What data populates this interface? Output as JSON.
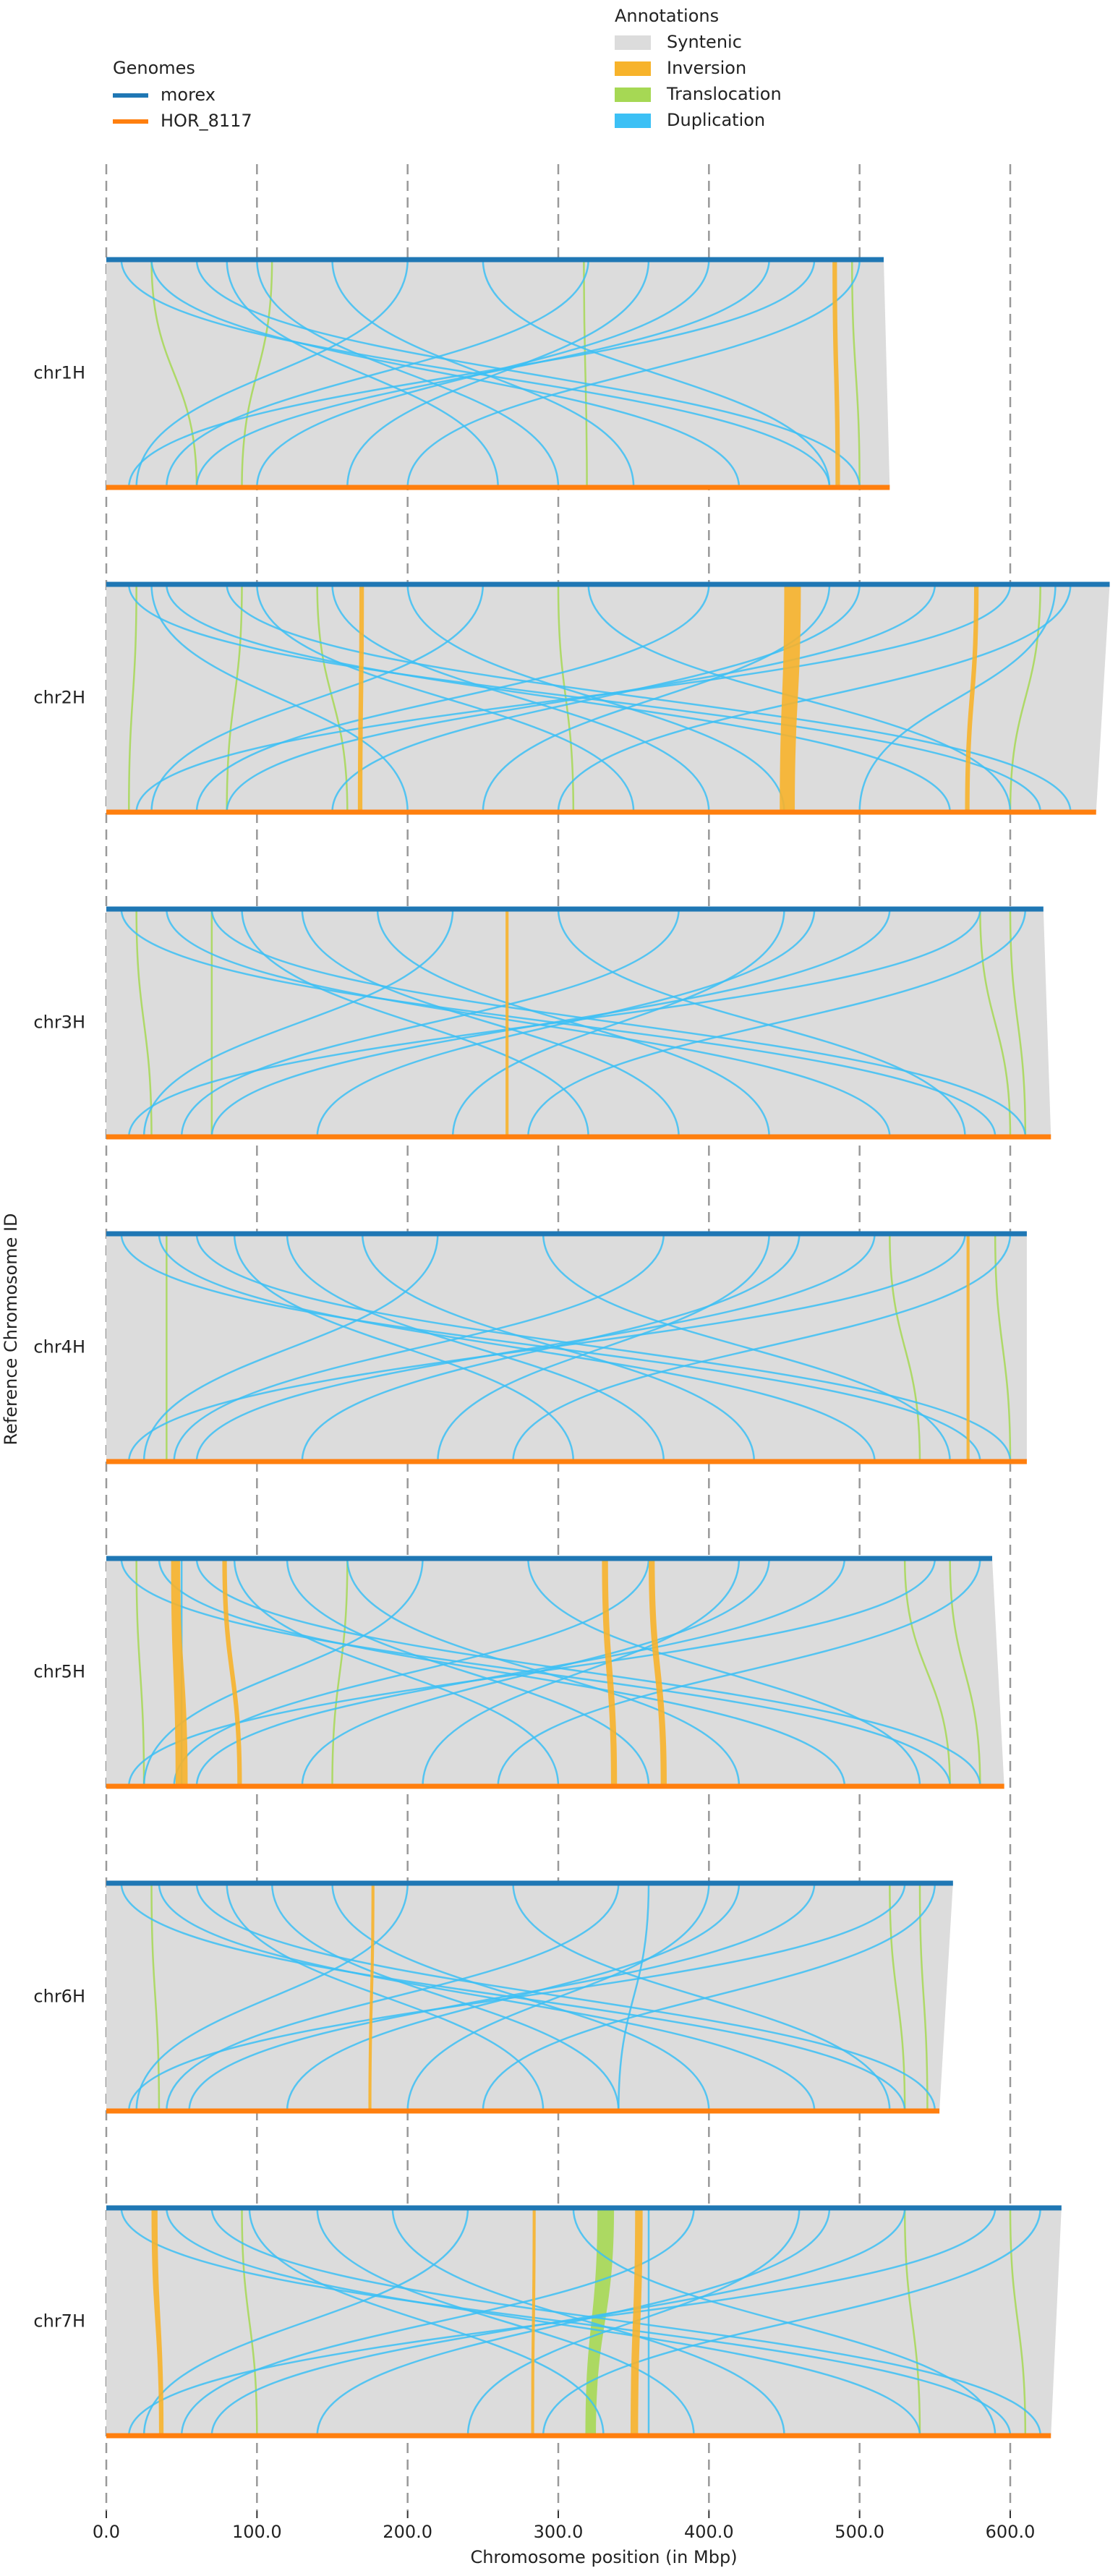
{
  "chart_data": {
    "type": "synteny",
    "x_label": "Chromosome position (in Mbp)",
    "y_label": "Reference Chromosome ID",
    "xlim": [
      0,
      670
    ],
    "xticks": [
      {
        "value": 0,
        "label": "0.0"
      },
      {
        "value": 100,
        "label": "100.0"
      },
      {
        "value": 200,
        "label": "200.0"
      },
      {
        "value": 300,
        "label": "300.0"
      },
      {
        "value": 400,
        "label": "400.0"
      },
      {
        "value": 500,
        "label": "500.0"
      },
      {
        "value": 600,
        "label": "600.0"
      }
    ],
    "grid": true,
    "genomes_title": "Genomes",
    "genomes": [
      {
        "name": "morex",
        "color": "#1f77b4"
      },
      {
        "name": "HOR_8117",
        "color": "#ff7f0e"
      }
    ],
    "annotations_title": "Annotations",
    "annotations": [
      {
        "name": "Syntenic",
        "color": "#dcdcdc"
      },
      {
        "name": "Inversion",
        "color": "#f7b32b"
      },
      {
        "name": "Translocation",
        "color": "#a6d854"
      },
      {
        "name": "Duplication",
        "color": "#3cc0f5"
      }
    ],
    "chromosomes": [
      {
        "name": "chr1H",
        "ref_length": 516,
        "qry_length": 520,
        "inversions": [
          [
            482,
            485,
            484,
            487
          ]
        ],
        "translocations": [
          [
            317,
            319
          ],
          [
            30,
            60
          ],
          [
            495,
            500
          ],
          [
            110,
            90
          ]
        ],
        "duplications": [
          [
            10,
            480
          ],
          [
            30,
            420
          ],
          [
            60,
            500
          ],
          [
            100,
            300
          ],
          [
            200,
            20
          ],
          [
            250,
            480
          ],
          [
            320,
            40
          ],
          [
            400,
            100
          ],
          [
            470,
            15
          ],
          [
            500,
            200
          ],
          [
            150,
            350
          ],
          [
            360,
            160
          ],
          [
            440,
            60
          ],
          [
            80,
            260
          ]
        ]
      },
      {
        "name": "chr2H",
        "ref_length": 666,
        "qry_length": 657,
        "inversions": [
          [
            450,
            461,
            447,
            457
          ],
          [
            168,
            171,
            167,
            170
          ],
          [
            576,
            579,
            570,
            573
          ]
        ],
        "translocations": [
          [
            20,
            15
          ],
          [
            90,
            80
          ],
          [
            300,
            310
          ],
          [
            620,
            600
          ],
          [
            140,
            160
          ]
        ],
        "duplications": [
          [
            15,
            620
          ],
          [
            40,
            560
          ],
          [
            80,
            640
          ],
          [
            150,
            400
          ],
          [
            250,
            30
          ],
          [
            320,
            600
          ],
          [
            400,
            60
          ],
          [
            500,
            150
          ],
          [
            600,
            20
          ],
          [
            640,
            300
          ],
          [
            200,
            450
          ],
          [
            480,
            250
          ],
          [
            550,
            80
          ],
          [
            100,
            350
          ],
          [
            30,
            200
          ],
          [
            630,
            500
          ]
        ]
      },
      {
        "name": "chr3H",
        "ref_length": 622,
        "qry_length": 627,
        "inversions": [
          [
            265,
            267,
            265,
            267
          ]
        ],
        "translocations": [
          [
            70,
            70
          ],
          [
            600,
            610
          ],
          [
            20,
            30
          ],
          [
            580,
            600
          ]
        ],
        "duplications": [
          [
            10,
            590
          ],
          [
            40,
            520
          ],
          [
            70,
            610
          ],
          [
            130,
            380
          ],
          [
            230,
            25
          ],
          [
            300,
            570
          ],
          [
            380,
            50
          ],
          [
            470,
            140
          ],
          [
            580,
            15
          ],
          [
            610,
            280
          ],
          [
            180,
            440
          ],
          [
            450,
            230
          ],
          [
            520,
            70
          ],
          [
            90,
            320
          ]
        ]
      },
      {
        "name": "chr4H",
        "ref_length": 611,
        "qry_length": 611,
        "inversions": [
          [
            571,
            573,
            571,
            573
          ]
        ],
        "translocations": [
          [
            40,
            40
          ],
          [
            520,
            540
          ],
          [
            590,
            600
          ]
        ],
        "duplications": [
          [
            10,
            580
          ],
          [
            35,
            510
          ],
          [
            60,
            600
          ],
          [
            120,
            370
          ],
          [
            220,
            25
          ],
          [
            290,
            560
          ],
          [
            370,
            45
          ],
          [
            460,
            130
          ],
          [
            570,
            15
          ],
          [
            600,
            270
          ],
          [
            170,
            430
          ],
          [
            440,
            220
          ],
          [
            510,
            60
          ],
          [
            85,
            310
          ]
        ]
      },
      {
        "name": "chr5H",
        "ref_length": 588,
        "qry_length": 596,
        "inversions": [
          [
            43,
            49,
            46,
            54
          ],
          [
            77,
            80,
            87,
            90
          ],
          [
            329,
            333,
            335,
            339
          ],
          [
            360,
            364,
            368,
            372
          ]
        ],
        "translocations": [
          [
            20,
            25
          ],
          [
            160,
            150
          ],
          [
            560,
            580
          ],
          [
            530,
            560
          ]
        ],
        "duplications": [
          [
            10,
            560
          ],
          [
            35,
            490
          ],
          [
            60,
            580
          ],
          [
            120,
            360
          ],
          [
            210,
            25
          ],
          [
            280,
            540
          ],
          [
            360,
            45
          ],
          [
            440,
            130
          ],
          [
            550,
            15
          ],
          [
            580,
            260
          ],
          [
            160,
            420
          ],
          [
            420,
            210
          ],
          [
            490,
            60
          ],
          [
            85,
            300
          ],
          [
            50,
            50
          ]
        ]
      },
      {
        "name": "chr6H",
        "ref_length": 562,
        "qry_length": 553,
        "inversions": [
          [
            176,
            178,
            174,
            176
          ]
        ],
        "translocations": [
          [
            30,
            35
          ],
          [
            520,
            530
          ],
          [
            540,
            545
          ]
        ],
        "duplications": [
          [
            10,
            530
          ],
          [
            35,
            470
          ],
          [
            60,
            550
          ],
          [
            110,
            340
          ],
          [
            200,
            20
          ],
          [
            270,
            520
          ],
          [
            340,
            40
          ],
          [
            420,
            120
          ],
          [
            530,
            15
          ],
          [
            550,
            250
          ],
          [
            150,
            400
          ],
          [
            400,
            200
          ],
          [
            470,
            55
          ],
          [
            80,
            290
          ],
          [
            360,
            340
          ]
        ]
      },
      {
        "name": "chr7H",
        "ref_length": 634,
        "qry_length": 627,
        "inversions": [
          [
            351,
            356,
            348,
            353
          ],
          [
            283,
            285,
            282,
            284
          ],
          [
            30,
            34,
            35,
            38
          ]
        ],
        "translocations": [
          [
            326,
            337,
            318,
            325
          ],
          [
            90,
            100
          ],
          [
            530,
            540
          ],
          [
            600,
            610
          ]
        ],
        "duplications": [
          [
            10,
            600
          ],
          [
            40,
            540
          ],
          [
            70,
            620
          ],
          [
            140,
            390
          ],
          [
            240,
            25
          ],
          [
            310,
            590
          ],
          [
            390,
            50
          ],
          [
            480,
            140
          ],
          [
            590,
            15
          ],
          [
            620,
            290
          ],
          [
            190,
            450
          ],
          [
            460,
            240
          ],
          [
            530,
            70
          ],
          [
            95,
            330
          ],
          [
            360,
            360
          ]
        ]
      }
    ]
  }
}
